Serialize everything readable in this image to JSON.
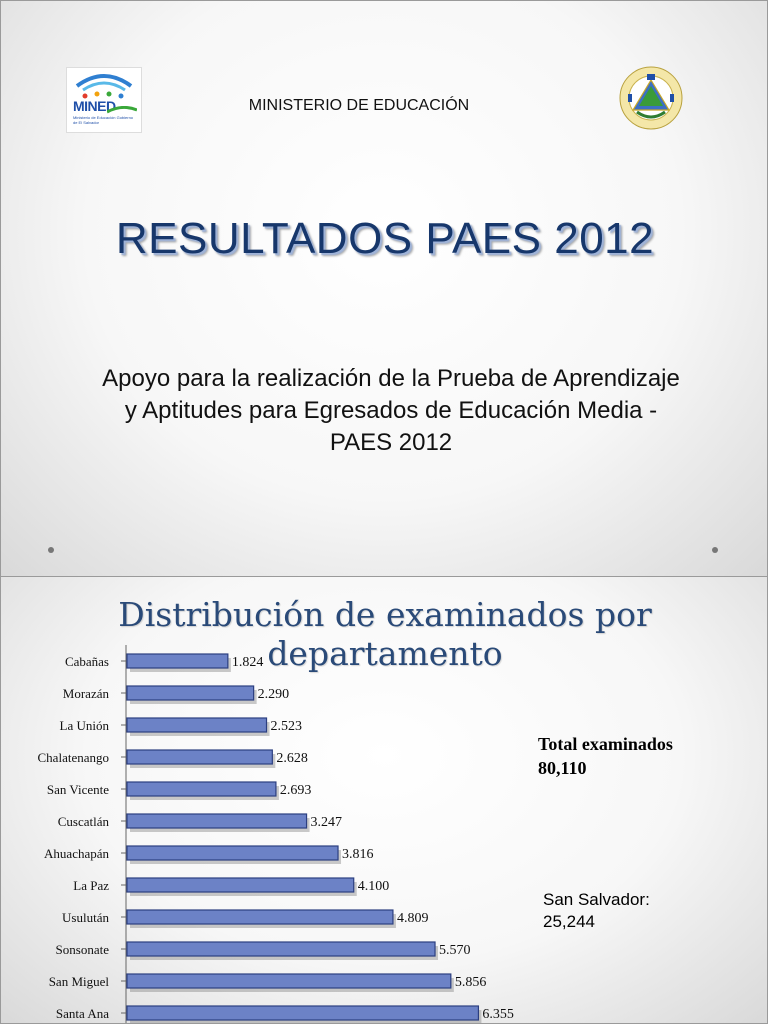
{
  "slide1": {
    "logo_text": "MINED",
    "logo_subtext": "Ministerio de Educación Gobierno de El Salvador",
    "ministry": "MINISTERIO DE EDUCACIÓN",
    "title": "RESULTADOS PAES 2012",
    "subtitle_line1": "Apoyo para la realización de la Prueba de Aprendizaje",
    "subtitle_line2": "y  Aptitudes para Egresados de Educación Media -",
    "subtitle_line3": "PAES  2012"
  },
  "slide2": {
    "title": "Distribución de examinados por departamento",
    "total_label_line1": "Total examinados",
    "total_label_line2": "80,110",
    "ss_label_line1": "San Salvador:",
    "ss_label_line2": "25,244"
  },
  "colors": {
    "bar_fill": "#6c82c6",
    "bar_stroke": "#2c3f80",
    "title_blue": "#17376b"
  },
  "chart_data": {
    "type": "bar",
    "orientation": "horizontal",
    "categories": [
      "Cabañas",
      "Morazán",
      "La Unión",
      "Chalatenango",
      "San Vicente",
      "Cuscatlán",
      "Ahuachapán",
      "La Paz",
      "Usulután",
      "Sonsonate",
      "San Miguel",
      "Santa Ana"
    ],
    "values": [
      1824,
      2290,
      2523,
      2628,
      2693,
      3247,
      3816,
      4100,
      4809,
      5570,
      5856,
      6355
    ],
    "value_labels": [
      "1.824",
      "2.290",
      "2.523",
      "2.628",
      "2.693",
      "3.247",
      "3.816",
      "4.100",
      "4.809",
      "5.570",
      "5.856",
      "6.355"
    ],
    "title": "Distribución de examinados por departamento",
    "xlabel": "",
    "ylabel": ""
  }
}
